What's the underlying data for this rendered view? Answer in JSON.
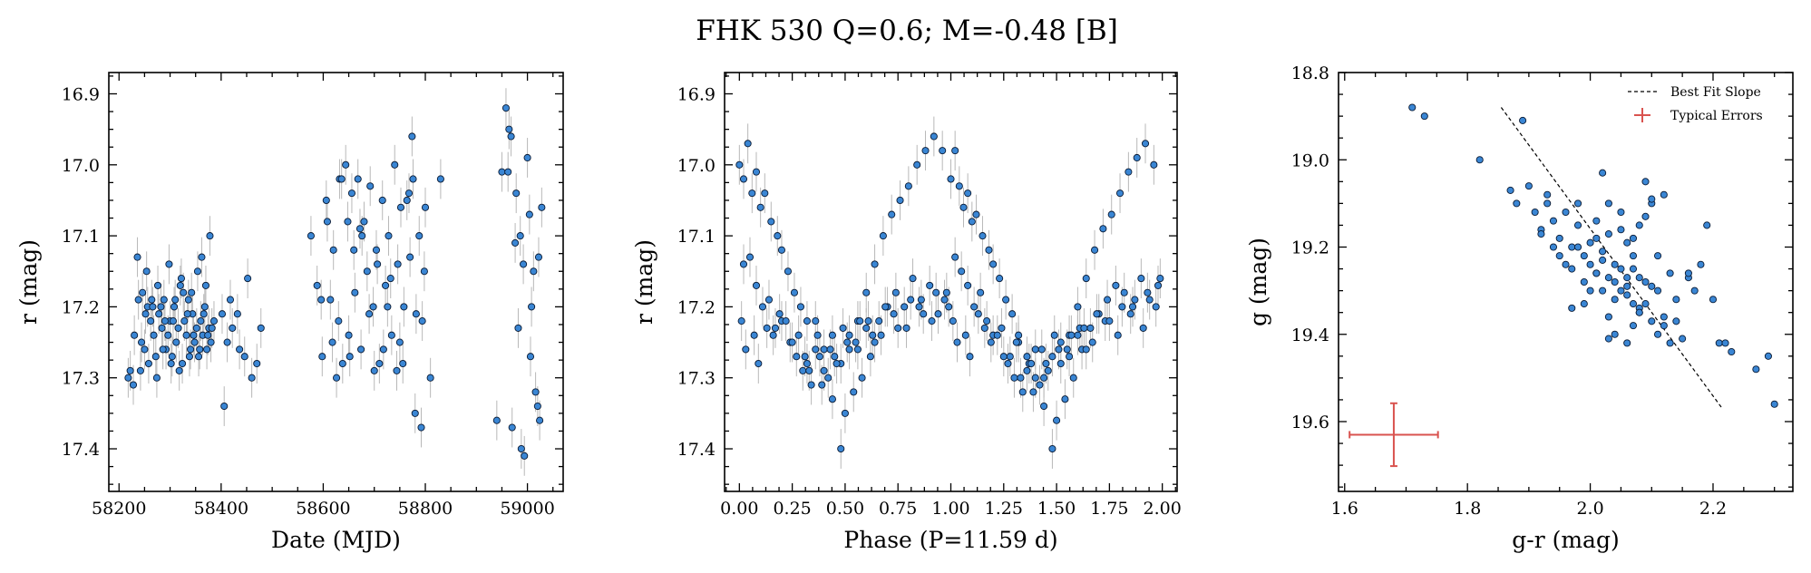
{
  "title": "FHK 530  Q=0.6; M=-0.48 [B]",
  "colors": {
    "point_fill": "#3a86d4",
    "point_edge": "#0a1a33",
    "errorbar": "#b8b8b8",
    "fit_line": "#000000",
    "typical_error": "#d9534f"
  },
  "chart_data": [
    {
      "type": "scatter",
      "xlabel": "Date (MJD)",
      "ylabel": "r (mag)",
      "xlim": [
        58180,
        59070
      ],
      "ylim": [
        17.46,
        16.87
      ],
      "y_inverted": true,
      "xticks": [
        "58200",
        "58400",
        "58600",
        "58800",
        "59000"
      ],
      "yticks": [
        "16.9",
        "17.0",
        "17.1",
        "17.2",
        "17.3",
        "17.4"
      ],
      "yerr_typical": 0.028,
      "x": [
        58218,
        58222,
        58230,
        58238,
        58244,
        58250,
        58256,
        58262,
        58268,
        58272,
        58278,
        58284,
        58288,
        58292,
        58296,
        58300,
        58304,
        58308,
        58312,
        58316,
        58320,
        58324,
        58328,
        58332,
        58336,
        58340,
        58344,
        58348,
        58352,
        58356,
        58360,
        58364,
        58368,
        58372,
        58376,
        58380,
        58236,
        58246,
        58254,
        58266,
        58276,
        58290,
        58298,
        58310,
        58322,
        58334,
        58342,
        58354,
        58362,
        58370,
        58378,
        58228,
        58242,
        58258,
        58274,
        58286,
        58302,
        58318,
        58338,
        58358,
        58374,
        58382,
        58252,
        58264,
        58282,
        58306,
        58326,
        58346,
        58366,
        58386,
        58402,
        58412,
        58422,
        58432,
        58446,
        58460,
        58470,
        58478,
        58406,
        58418,
        58436,
        58452,
        58576,
        58588,
        58598,
        58606,
        58614,
        58620,
        58626,
        58632,
        58638,
        58644,
        58650,
        58656,
        58662,
        58668,
        58674,
        58680,
        58686,
        58692,
        58698,
        58704,
        58710,
        58716,
        58722,
        58728,
        58734,
        58740,
        58746,
        58752,
        58758,
        58764,
        58770,
        58776,
        58782,
        58788,
        58794,
        58800,
        58810,
        58830,
        58596,
        58618,
        58636,
        58648,
        58660,
        58676,
        58690,
        58706,
        58718,
        58732,
        58744,
        58756,
        58768,
        58780,
        58792,
        58608,
        58630,
        58652,
        58672,
        58700,
        58726,
        58750,
        58774,
        58798,
        58940,
        58950,
        58958,
        58964,
        58970,
        58976,
        58982,
        58988,
        58994,
        59000,
        59004,
        59008,
        59012,
        59016,
        59020,
        59024,
        59028,
        58962,
        58978,
        58992,
        59006,
        59022,
        58968,
        58986
      ],
      "y": [
        17.3,
        17.29,
        17.24,
        17.19,
        17.25,
        17.26,
        17.2,
        17.22,
        17.24,
        17.27,
        17.21,
        17.23,
        17.19,
        17.26,
        17.24,
        17.22,
        17.27,
        17.2,
        17.25,
        17.23,
        17.17,
        17.28,
        17.22,
        17.24,
        17.19,
        17.26,
        17.21,
        17.25,
        17.23,
        17.27,
        17.22,
        17.24,
        17.2,
        17.26,
        17.23,
        17.25,
        17.13,
        17.18,
        17.15,
        17.2,
        17.17,
        17.22,
        17.14,
        17.19,
        17.16,
        17.21,
        17.18,
        17.15,
        17.13,
        17.17,
        17.1,
        17.31,
        17.29,
        17.28,
        17.3,
        17.26,
        17.28,
        17.29,
        17.27,
        17.26,
        17.24,
        17.23,
        17.21,
        17.19,
        17.2,
        17.22,
        17.18,
        17.24,
        17.21,
        17.22,
        17.21,
        17.25,
        17.23,
        17.21,
        17.27,
        17.3,
        17.28,
        17.23,
        17.34,
        17.19,
        17.26,
        17.16,
        17.1,
        17.17,
        17.27,
        17.05,
        17.19,
        17.12,
        17.3,
        17.02,
        17.28,
        17.0,
        17.24,
        17.04,
        17.18,
        17.02,
        17.26,
        17.08,
        17.15,
        17.03,
        17.2,
        17.12,
        17.28,
        17.05,
        17.17,
        17.1,
        17.24,
        17.0,
        17.14,
        17.06,
        17.2,
        17.05,
        17.13,
        17.02,
        17.21,
        17.1,
        17.22,
        17.06,
        17.3,
        17.02,
        17.19,
        17.25,
        17.02,
        17.08,
        17.12,
        17.1,
        17.21,
        17.14,
        17.26,
        17.16,
        17.29,
        17.28,
        17.04,
        17.35,
        17.37,
        17.08,
        17.22,
        17.27,
        17.09,
        17.29,
        17.2,
        17.25,
        16.96,
        17.15,
        17.36,
        17.01,
        16.92,
        16.95,
        17.37,
        17.11,
        17.23,
        17.4,
        17.41,
        16.99,
        17.07,
        17.2,
        17.15,
        17.32,
        17.34,
        17.36,
        17.06,
        17.01,
        17.04,
        17.14,
        17.27,
        17.13,
        16.96,
        17.1
      ]
    },
    {
      "type": "scatter",
      "xlabel": "Phase (P=11.59 d)",
      "ylabel": "r (mag)",
      "xlim": [
        -0.07,
        2.07
      ],
      "ylim": [
        17.46,
        16.87
      ],
      "y_inverted": true,
      "xticks": [
        "0.00",
        "0.25",
        "0.50",
        "0.75",
        "1.00",
        "1.25",
        "1.50",
        "1.75",
        "2.00"
      ],
      "yticks": [
        "16.9",
        "17.0",
        "17.1",
        "17.2",
        "17.3",
        "17.4"
      ],
      "period_days": 11.59,
      "yerr_typical": 0.028,
      "x": [
        0.0,
        0.02,
        0.04,
        0.06,
        0.08,
        0.1,
        0.12,
        0.15,
        0.18,
        0.2,
        0.23,
        0.26,
        0.29,
        0.32,
        0.36,
        0.4,
        0.44,
        0.48,
        0.02,
        0.05,
        0.08,
        0.11,
        0.14,
        0.17,
        0.2,
        0.24,
        0.28,
        0.32,
        0.36,
        0.4,
        0.44,
        0.48,
        0.52,
        0.56,
        0.6,
        0.64,
        0.68,
        0.72,
        0.76,
        0.8,
        0.84,
        0.88,
        0.92,
        0.96,
        0.5,
        0.54,
        0.58,
        0.62,
        0.66,
        0.7,
        0.74,
        0.78,
        0.82,
        0.86,
        0.9,
        0.94,
        0.98,
        0.01,
        0.07,
        0.13,
        0.19,
        0.25,
        0.31,
        0.37,
        0.43,
        0.49,
        0.55,
        0.61,
        0.67,
        0.73,
        0.79,
        0.85,
        0.91,
        0.97,
        0.3,
        0.34,
        0.38,
        0.42,
        0.46,
        0.52,
        0.56,
        0.6,
        0.64,
        0.03,
        0.09,
        0.16,
        0.22,
        0.27,
        0.33,
        0.39,
        0.45,
        0.51,
        0.57,
        0.63,
        0.69,
        0.75,
        0.81,
        0.87,
        0.93,
        0.99,
        1.0,
        1.02,
        1.04,
        1.06,
        1.08,
        1.1,
        1.12,
        1.15,
        1.18,
        1.2,
        1.23,
        1.26,
        1.29,
        1.32,
        1.36,
        1.4,
        1.44,
        1.48,
        1.02,
        1.05,
        1.08,
        1.11,
        1.14,
        1.17,
        1.2,
        1.24,
        1.28,
        1.32,
        1.36,
        1.4,
        1.44,
        1.48,
        1.52,
        1.56,
        1.6,
        1.64,
        1.68,
        1.72,
        1.76,
        1.8,
        1.84,
        1.88,
        1.92,
        1.96,
        1.5,
        1.54,
        1.58,
        1.62,
        1.66,
        1.7,
        1.74,
        1.78,
        1.82,
        1.86,
        1.9,
        1.94,
        1.98,
        1.01,
        1.07,
        1.13,
        1.19,
        1.25,
        1.31,
        1.37,
        1.43,
        1.49,
        1.55,
        1.61,
        1.67,
        1.73,
        1.79,
        1.85,
        1.91,
        1.97,
        1.3,
        1.34,
        1.38,
        1.42,
        1.46,
        1.52,
        1.56,
        1.6,
        1.64,
        1.03,
        1.09,
        1.16,
        1.22,
        1.27,
        1.33,
        1.39,
        1.45,
        1.51,
        1.57,
        1.63,
        1.69,
        1.75,
        1.81,
        1.87,
        1.93,
        1.99
      ],
      "y": [
        17.0,
        17.02,
        16.97,
        17.04,
        17.01,
        17.06,
        17.04,
        17.08,
        17.1,
        17.12,
        17.15,
        17.18,
        17.2,
        17.22,
        17.26,
        17.29,
        17.33,
        17.4,
        17.14,
        17.13,
        17.17,
        17.2,
        17.19,
        17.23,
        17.22,
        17.25,
        17.24,
        17.28,
        17.22,
        17.26,
        17.24,
        17.28,
        17.26,
        17.22,
        17.18,
        17.14,
        17.1,
        17.07,
        17.05,
        17.03,
        17.0,
        16.98,
        16.96,
        16.98,
        17.35,
        17.32,
        17.3,
        17.27,
        17.22,
        17.2,
        17.18,
        17.2,
        17.16,
        17.19,
        17.17,
        17.21,
        17.18,
        17.22,
        17.24,
        17.23,
        17.21,
        17.25,
        17.27,
        17.24,
        17.26,
        17.23,
        17.25,
        17.22,
        17.24,
        17.21,
        17.23,
        17.2,
        17.22,
        17.19,
        17.29,
        17.31,
        17.27,
        17.3,
        17.28,
        17.24,
        17.26,
        17.23,
        17.25,
        17.26,
        17.28,
        17.24,
        17.22,
        17.27,
        17.29,
        17.31,
        17.27,
        17.25,
        17.22,
        17.24,
        17.2,
        17.23,
        17.19,
        17.21,
        17.18,
        17.2,
        17.02,
        16.98,
        17.03,
        17.06,
        17.04,
        17.08,
        17.07,
        17.1,
        17.12,
        17.14,
        17.16,
        17.19,
        17.21,
        17.24,
        17.27,
        17.3,
        17.34,
        17.4,
        17.13,
        17.15,
        17.17,
        17.2,
        17.18,
        17.22,
        17.24,
        17.23,
        17.27,
        17.25,
        17.29,
        17.26,
        17.3,
        17.27,
        17.28,
        17.24,
        17.2,
        17.16,
        17.12,
        17.09,
        17.07,
        17.04,
        17.01,
        16.99,
        16.97,
        17.0,
        17.36,
        17.33,
        17.3,
        17.26,
        17.23,
        17.21,
        17.19,
        17.17,
        17.18,
        17.2,
        17.16,
        17.19,
        17.17,
        17.22,
        17.24,
        17.21,
        17.25,
        17.27,
        17.25,
        17.28,
        17.26,
        17.24,
        17.26,
        17.23,
        17.25,
        17.22,
        17.24,
        17.21,
        17.23,
        17.2,
        17.3,
        17.32,
        17.28,
        17.31,
        17.29,
        17.25,
        17.27,
        17.24,
        17.26,
        17.25,
        17.27,
        17.23,
        17.24,
        17.28,
        17.3,
        17.32,
        17.28,
        17.26,
        17.24,
        17.23,
        17.21,
        17.22,
        17.2,
        17.19,
        17.18,
        17.16
      ]
    },
    {
      "type": "scatter",
      "xlabel": "g-r (mag)",
      "ylabel": "g (mag)",
      "xlim": [
        1.59,
        2.33
      ],
      "ylim": [
        19.76,
        18.8
      ],
      "y_inverted": true,
      "xticks": [
        "1.6",
        "1.8",
        "2.0",
        "2.2"
      ],
      "yticks": [
        "18.8",
        "19.0",
        "19.2",
        "19.4",
        "19.6"
      ],
      "legend": {
        "position": "top-right",
        "entries": [
          "Best Fit Slope",
          "Typical Errors"
        ]
      },
      "best_fit_line": {
        "x": [
          1.855,
          2.215
        ],
        "y": [
          18.88,
          19.57
        ]
      },
      "typical_error": {
        "x": 1.68,
        "y": 19.63,
        "xerr": 0.072,
        "yerr": 0.072
      },
      "x": [
        1.71,
        1.73,
        1.82,
        1.89,
        1.87,
        1.88,
        1.9,
        1.91,
        1.93,
        1.92,
        1.94,
        1.95,
        1.96,
        1.97,
        1.98,
        1.99,
        2.0,
        2.01,
        2.02,
        2.03,
        2.04,
        2.05,
        2.06,
        2.07,
        2.08,
        2.09,
        2.1,
        2.11,
        2.12,
        1.95,
        1.97,
        1.99,
        2.01,
        2.03,
        2.05,
        2.07,
        2.09,
        2.11,
        2.13,
        1.96,
        1.98,
        2.0,
        2.02,
        2.04,
        2.06,
        2.08,
        2.1,
        2.12,
        2.14,
        1.94,
        1.99,
        2.03,
        2.07,
        2.11,
        2.15,
        2.0,
        2.02,
        2.04,
        2.06,
        2.08,
        2.1,
        2.01,
        2.03,
        2.05,
        2.07,
        2.09,
        2.05,
        2.06,
        2.07,
        2.08,
        2.04,
        2.03,
        2.02,
        2.09,
        2.1,
        2.13,
        2.16,
        2.19,
        2.21,
        2.22,
        2.23,
        2.27,
        2.29,
        2.3,
        2.16,
        2.18,
        1.98,
        1.93,
        2.12,
        2.14,
        2.06,
        2.08,
        1.97,
        2.17,
        2.2,
        1.92,
        2.01
      ],
      "y": [
        18.88,
        18.9,
        19.0,
        18.91,
        19.07,
        19.1,
        19.06,
        19.12,
        19.08,
        19.16,
        19.14,
        19.18,
        19.12,
        19.2,
        19.15,
        19.22,
        19.19,
        19.26,
        19.21,
        19.17,
        19.24,
        19.12,
        19.19,
        19.25,
        19.15,
        19.28,
        19.1,
        19.22,
        19.08,
        19.22,
        19.25,
        19.28,
        19.18,
        19.27,
        19.3,
        19.22,
        19.33,
        19.3,
        19.26,
        19.24,
        19.2,
        19.3,
        19.23,
        19.32,
        19.27,
        19.35,
        19.29,
        19.36,
        19.32,
        19.2,
        19.33,
        19.36,
        19.38,
        19.4,
        19.41,
        19.24,
        19.3,
        19.28,
        19.31,
        19.34,
        19.37,
        19.14,
        19.1,
        19.16,
        19.18,
        19.13,
        19.25,
        19.29,
        19.33,
        19.27,
        19.4,
        19.41,
        19.03,
        19.05,
        19.09,
        19.42,
        19.27,
        19.15,
        19.42,
        19.42,
        19.44,
        19.48,
        19.45,
        19.56,
        19.26,
        19.24,
        19.1,
        19.1,
        19.38,
        19.37,
        19.42,
        19.35,
        19.34,
        19.3,
        19.32,
        19.17,
        19.26
      ]
    }
  ]
}
